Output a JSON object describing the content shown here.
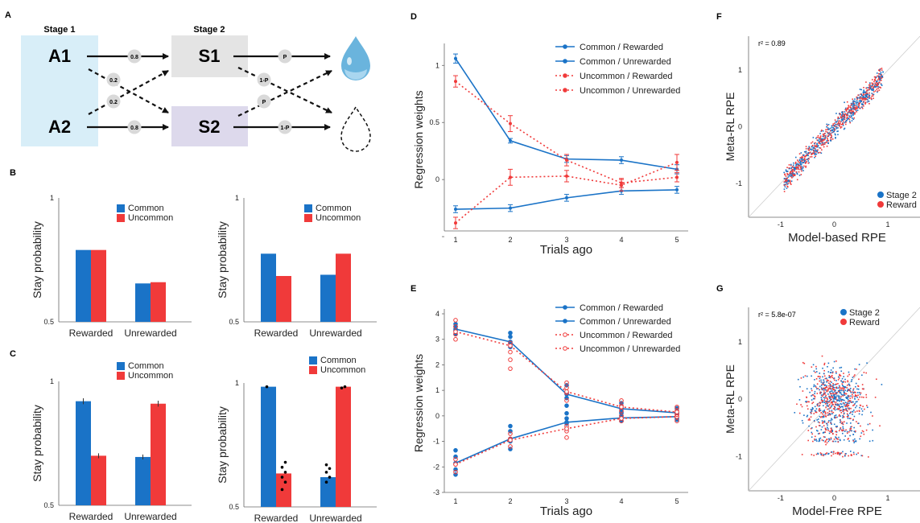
{
  "colors": {
    "blue": "#1a73c7",
    "red": "#f03a3a",
    "stage1_bg": "#d8eef8",
    "s1_bg": "#e4e4e4",
    "s2_bg": "#ddd9ec",
    "drop": "#6ab4dd"
  },
  "panel_letters": {
    "A": "A",
    "B": "B",
    "C": "C",
    "D": "D",
    "E": "E",
    "F": "F",
    "G": "G"
  },
  "diagram": {
    "stage1_label": "Stage 1",
    "stage2_label": "Stage 2",
    "a1": "A1",
    "a2": "A2",
    "s1": "S1",
    "s2": "S2",
    "p_a1_s1": "0.8",
    "p_a1_s2": "0.2",
    "p_a2_s1": "0.2",
    "p_a2_s2": "0.8",
    "s1_common": "P",
    "s1_cross": "1-P",
    "s2_cross": "P",
    "s2_common": "1-P",
    "reward_icon": "water-drop-icon",
    "no_reward_icon": "empty-drop-icon"
  },
  "chart_data": [
    {
      "id": "B-left",
      "type": "bar",
      "categories": [
        "Rewarded",
        "Unrewarded"
      ],
      "series": [
        {
          "name": "Common",
          "values": [
            0.79,
            0.655
          ]
        },
        {
          "name": "Uncommon",
          "values": [
            0.79,
            0.66
          ]
        }
      ],
      "ylabel": "Stay probability",
      "ylim": [
        0.5,
        1
      ],
      "yticks": [
        "0.5",
        "1"
      ]
    },
    {
      "id": "B-right",
      "type": "bar",
      "categories": [
        "Rewarded",
        "Unrewarded"
      ],
      "series": [
        {
          "name": "Common",
          "values": [
            0.775,
            0.69
          ]
        },
        {
          "name": "Uncommon",
          "values": [
            0.685,
            0.775
          ]
        }
      ],
      "ylabel": "Stay probability",
      "ylim": [
        0.5,
        1
      ],
      "yticks": [
        "0.5",
        "1"
      ]
    },
    {
      "id": "C-left",
      "type": "bar",
      "categories": [
        "Rewarded",
        "Unrewarded"
      ],
      "series": [
        {
          "name": "Common",
          "values": [
            0.92,
            0.695
          ]
        },
        {
          "name": "Uncommon",
          "values": [
            0.7,
            0.91
          ]
        }
      ],
      "error": [
        [
          0.012,
          0.01
        ],
        [
          0.01,
          0.012
        ]
      ],
      "ylabel": "Stay probability",
      "ylim": [
        0.5,
        1
      ],
      "yticks": [
        "0.5",
        "1"
      ]
    },
    {
      "id": "C-right",
      "type": "bar",
      "categories": [
        "Rewarded",
        "Unrewarded"
      ],
      "series": [
        {
          "name": "Common",
          "values": [
            0.985,
            0.62
          ]
        },
        {
          "name": "Uncommon",
          "values": [
            0.635,
            0.985
          ]
        }
      ],
      "points": [
        [
          [
            0.985
          ],
          [
            0.57,
            0.6,
            0.62,
            0.64,
            0.66,
            0.68
          ]
        ],
        [
          [
            0.6,
            0.62,
            0.64,
            0.655,
            0.67
          ],
          [
            0.98,
            0.985
          ]
        ]
      ],
      "ylabel": "Stay probability",
      "ylim": [
        0.5,
        1
      ],
      "yticks": [
        "0.5",
        "1"
      ]
    },
    {
      "id": "D",
      "type": "line",
      "x": [
        1,
        2,
        3,
        4,
        5
      ],
      "series": [
        {
          "name": "Common / Rewarded",
          "values": [
            1.06,
            0.34,
            0.18,
            0.17,
            0.09
          ],
          "err": [
            0.04,
            0.02,
            0.03,
            0.03,
            0.04
          ]
        },
        {
          "name": "Common / Unrewarded",
          "values": [
            -0.26,
            -0.25,
            -0.16,
            -0.1,
            -0.09
          ],
          "err": [
            0.03,
            0.03,
            0.03,
            0.03,
            0.03
          ]
        },
        {
          "name": "Uncommon / Rewarded",
          "values": [
            -0.38,
            0.02,
            0.03,
            -0.05,
            0.15
          ],
          "err": [
            0.05,
            0.07,
            0.05,
            0.05,
            0.07
          ]
        },
        {
          "name": "Uncommon / Unrewarded",
          "values": [
            0.86,
            0.49,
            0.17,
            -0.03,
            0.02
          ],
          "err": [
            0.05,
            0.07,
            0.05,
            0.04,
            0.04
          ]
        }
      ],
      "xlabel": "Trials ago",
      "ylabel": "Regression weights",
      "ylim": [
        -0.45,
        1.15
      ],
      "yticks": [
        -0.5,
        0,
        0.5,
        1
      ],
      "ytick_labels": [
        "",
        "0",
        "0.5",
        "1"
      ]
    },
    {
      "id": "E",
      "type": "line",
      "x": [
        1,
        2,
        3,
        4,
        5
      ],
      "series": [
        {
          "name": "Common / Rewarded",
          "values": [
            3.4,
            2.9,
            0.85,
            0.28,
            0.12
          ],
          "pts": [
            [
              3.2,
              3.35,
              3.5,
              3.6
            ],
            [
              2.7,
              2.85,
              3.1,
              3.25
            ],
            [
              0.4,
              0.7,
              0.9,
              1.2
            ],
            [
              0.15,
              0.3,
              0.5
            ],
            [
              -0.1,
              0.1,
              0.3
            ]
          ]
        },
        {
          "name": "Common / Unrewarded",
          "values": [
            -1.85,
            -0.9,
            -0.25,
            -0.08,
            -0.03
          ],
          "pts": [
            [
              -2.3,
              -2.1,
              -1.6,
              -1.35
            ],
            [
              -1.3,
              -1.0,
              -0.6,
              -0.4
            ],
            [
              -0.5,
              -0.3,
              -0.1,
              0.1
            ],
            [
              -0.2,
              0.0,
              0.1
            ],
            [
              -0.15,
              0.1
            ]
          ]
        },
        {
          "name": "Uncommon / Rewarded",
          "values": [
            -1.9,
            -0.95,
            -0.5,
            -0.1,
            -0.03
          ],
          "pts": [
            [
              -2.2,
              -1.9,
              -1.7
            ],
            [
              -1.2,
              -0.9,
              -0.7
            ],
            [
              -0.85,
              -0.6,
              -0.4
            ],
            [
              -0.2,
              0.0
            ],
            [
              -0.2,
              0.05
            ]
          ]
        },
        {
          "name": "Uncommon / Unrewarded",
          "values": [
            3.3,
            2.75,
            0.95,
            0.35,
            0.15
          ],
          "pts": [
            [
              3.0,
              3.2,
              3.5,
              3.75
            ],
            [
              1.85,
              2.2,
              2.5,
              2.85
            ],
            [
              0.6,
              0.9,
              1.1,
              1.3
            ],
            [
              0.2,
              0.4,
              0.6
            ],
            [
              0.05,
              0.2,
              0.35
            ]
          ]
        }
      ],
      "xlabel": "Trials ago",
      "ylabel": "Regression weights",
      "ylim": [
        -3,
        4
      ],
      "yticks": [
        -3,
        -2,
        -1,
        0,
        1,
        2,
        3,
        4
      ]
    },
    {
      "id": "F",
      "type": "scatter",
      "xlabel": "Model-based RPE",
      "ylabel": "Meta-RL RPE",
      "annotation": "r² = 0.89",
      "legend": [
        "Stage 2",
        "Reward"
      ],
      "xlim": [
        -1.6,
        1.6
      ],
      "ylim": [
        -1.6,
        1.6
      ],
      "xticks": [
        -1,
        0,
        1
      ],
      "yticks": [
        -1,
        0,
        1
      ]
    },
    {
      "id": "G",
      "type": "scatter",
      "xlabel": "Model-Free RPE",
      "ylabel": "Meta-RL RPE",
      "annotation": "r² = 5.8e-07",
      "legend": [
        "Stage 2",
        "Reward"
      ],
      "xlim": [
        -1.6,
        1.6
      ],
      "ylim": [
        -1.6,
        1.6
      ],
      "xticks": [
        -1,
        0,
        1
      ],
      "yticks": [
        -1,
        0,
        1
      ]
    }
  ]
}
